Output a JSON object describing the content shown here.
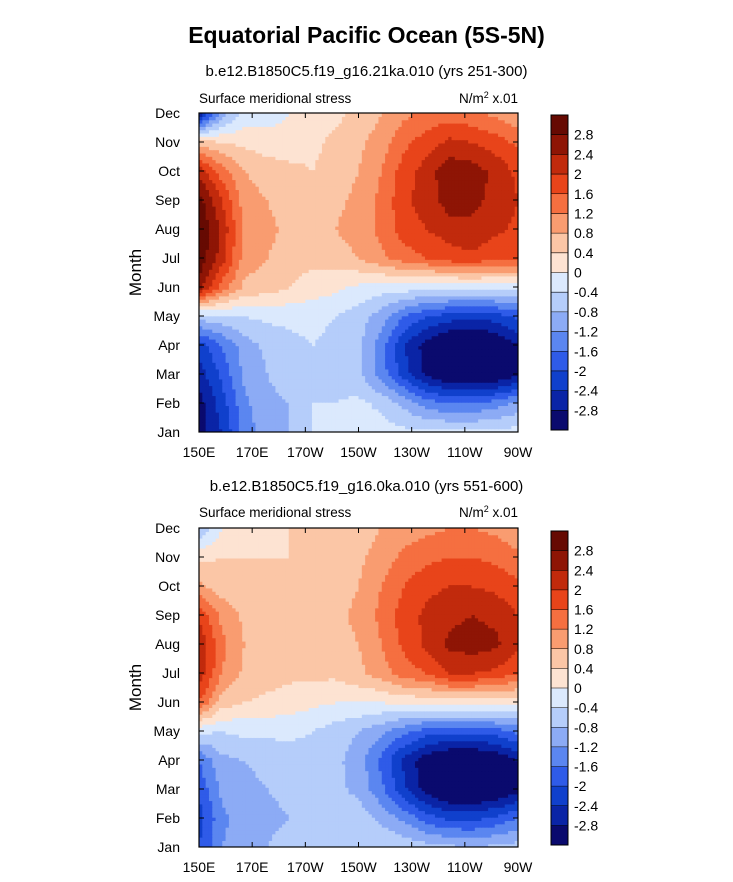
{
  "figure_title": "Equatorial Pacific Ocean (5S-5N)",
  "chart_data": [
    {
      "type": "heatmap",
      "title": "b.e12.B1850C5.f19_g16.21ka.010 (yrs 251-300)",
      "left_label": "Surface meridional stress",
      "right_label": "N/m² x.01",
      "units_base": "N/m",
      "units_sup": "2",
      "units_scale": "x.01",
      "xlabel": "",
      "ylabel": "Month",
      "x_ticks": [
        "150E",
        "170E",
        "170W",
        "150W",
        "130W",
        "110W",
        "90W"
      ],
      "y_ticks": [
        "Jan",
        "Feb",
        "Mar",
        "Apr",
        "May",
        "Jun",
        "Jul",
        "Aug",
        "Sep",
        "Oct",
        "Nov",
        "Dec"
      ],
      "colorbar_labels": [
        "2.8",
        "2.4",
        "2",
        "1.6",
        "1.2",
        "0.8",
        "0.4",
        "0",
        "-0.4",
        "-0.8",
        "-1.2",
        "-1.6",
        "-2",
        "-2.4",
        "-2.8"
      ],
      "rows": [
        [
          -3.0,
          -2.4,
          -1.4,
          -1.0,
          -0.8,
          -0.4,
          -0.3,
          -0.3,
          -0.2,
          -0.3,
          -0.3,
          -0.3,
          -0.3,
          -0.3,
          -0.2
        ],
        [
          -3.0,
          -2.2,
          -1.3,
          -0.9,
          -0.8,
          -0.4,
          -0.4,
          -0.3,
          -0.5,
          -0.9,
          -1.4,
          -1.6,
          -1.6,
          -1.4,
          -1.1
        ],
        [
          -2.6,
          -1.9,
          -1.1,
          -0.8,
          -0.6,
          -0.4,
          -0.5,
          -0.7,
          -1.4,
          -2.2,
          -2.9,
          -3.3,
          -3.4,
          -3.3,
          -2.9
        ],
        [
          -2.2,
          -1.6,
          -1.0,
          -0.7,
          -0.5,
          -0.4,
          -0.5,
          -0.7,
          -1.4,
          -2.4,
          -3.0,
          -3.4,
          -3.5,
          -3.3,
          -2.8
        ],
        [
          -0.6,
          -0.5,
          -0.4,
          -0.3,
          -0.3,
          -0.3,
          -0.4,
          -0.6,
          -1.0,
          -1.6,
          -2.0,
          -2.2,
          -2.3,
          -2.2,
          -1.9
        ],
        [
          2.6,
          1.4,
          0.7,
          0.6,
          0.4,
          0.2,
          0.1,
          -0.1,
          -0.2,
          -0.2,
          -0.3,
          -0.3,
          -0.3,
          -0.3,
          -0.2
        ],
        [
          3.1,
          2.2,
          1.0,
          0.8,
          0.6,
          0.5,
          0.6,
          0.8,
          1.1,
          1.4,
          1.6,
          1.8,
          1.9,
          1.7,
          1.6
        ],
        [
          3.2,
          2.3,
          1.1,
          0.9,
          0.7,
          0.6,
          0.8,
          1.0,
          1.3,
          1.8,
          2.0,
          2.2,
          2.3,
          2.1,
          1.9
        ],
        [
          3.0,
          2.0,
          1.0,
          0.8,
          0.6,
          0.5,
          0.7,
          0.9,
          1.3,
          1.9,
          2.2,
          2.6,
          2.5,
          2.3,
          2.0
        ],
        [
          2.3,
          1.4,
          0.8,
          0.6,
          0.5,
          0.4,
          0.6,
          0.8,
          1.2,
          1.8,
          2.2,
          2.7,
          2.6,
          2.3,
          1.9
        ],
        [
          0.6,
          0.4,
          0.3,
          0.2,
          0.2,
          0.3,
          0.5,
          0.7,
          1.0,
          1.5,
          1.8,
          2.1,
          2.0,
          1.8,
          1.5
        ],
        [
          -2.8,
          -1.0,
          -0.3,
          -0.2,
          0.0,
          0.2,
          0.3,
          0.5,
          0.8,
          1.1,
          1.3,
          1.4,
          1.3,
          1.1,
          0.9
        ]
      ]
    },
    {
      "type": "heatmap",
      "title": "b.e12.B1850C5.f19_g16.0ka.010 (yrs 551-600)",
      "left_label": "Surface meridional stress",
      "right_label": "N/m² x.01",
      "units_base": "N/m",
      "units_sup": "2",
      "units_scale": "x.01",
      "xlabel": "",
      "ylabel": "Month",
      "x_ticks": [
        "150E",
        "170E",
        "170W",
        "150W",
        "130W",
        "110W",
        "90W"
      ],
      "y_ticks": [
        "Jan",
        "Feb",
        "Mar",
        "Apr",
        "May",
        "Jun",
        "Jul",
        "Aug",
        "Sep",
        "Oct",
        "Nov",
        "Dec"
      ],
      "colorbar_labels": [
        "2.8",
        "2.4",
        "2",
        "1.6",
        "1.2",
        "0.8",
        "0.4",
        "0",
        "-0.4",
        "-0.8",
        "-1.2",
        "-1.6",
        "-2",
        "-2.4",
        "-2.8"
      ],
      "rows": [
        [
          -2.0,
          -1.2,
          -0.9,
          -0.8,
          -0.6,
          -0.5,
          -0.5,
          -0.4,
          -0.4,
          -0.5,
          -0.6,
          -0.7,
          -0.8,
          -0.7,
          -0.6
        ],
        [
          -2.2,
          -1.3,
          -1.0,
          -0.9,
          -0.8,
          -0.7,
          -0.6,
          -0.6,
          -0.9,
          -1.3,
          -1.8,
          -2.1,
          -2.1,
          -1.9,
          -1.6
        ],
        [
          -1.9,
          -1.1,
          -0.9,
          -0.8,
          -0.7,
          -0.6,
          -0.7,
          -0.9,
          -1.5,
          -2.3,
          -3.0,
          -3.4,
          -3.5,
          -3.3,
          -3.0
        ],
        [
          -1.6,
          -0.9,
          -0.8,
          -0.7,
          -0.6,
          -0.6,
          -0.7,
          -1.0,
          -1.7,
          -2.5,
          -3.1,
          -3.4,
          -3.4,
          -3.2,
          -2.8
        ],
        [
          -0.3,
          -0.4,
          -0.3,
          -0.3,
          -0.3,
          -0.4,
          -0.6,
          -0.8,
          -1.1,
          -1.5,
          -1.8,
          -1.9,
          -1.9,
          -1.8,
          -1.5
        ],
        [
          1.6,
          0.6,
          0.4,
          0.3,
          0.2,
          0.1,
          0.0,
          0.0,
          0.0,
          0.1,
          0.1,
          0.2,
          0.2,
          0.2,
          0.1
        ],
        [
          2.3,
          1.2,
          0.7,
          0.6,
          0.5,
          0.5,
          0.5,
          0.7,
          1.0,
          1.4,
          1.6,
          2.0,
          2.0,
          1.9,
          1.6
        ],
        [
          2.4,
          1.3,
          0.8,
          0.6,
          0.6,
          0.6,
          0.6,
          0.8,
          1.2,
          1.7,
          2.1,
          2.5,
          2.6,
          2.5,
          2.1
        ],
        [
          1.9,
          1.1,
          0.7,
          0.6,
          0.6,
          0.6,
          0.7,
          0.9,
          1.3,
          1.8,
          2.1,
          2.3,
          2.4,
          2.3,
          2.0
        ],
        [
          0.9,
          0.6,
          0.5,
          0.5,
          0.5,
          0.5,
          0.6,
          0.8,
          1.2,
          1.6,
          1.9,
          2.0,
          2.0,
          1.9,
          1.7
        ],
        [
          0.3,
          0.4,
          0.4,
          0.4,
          0.4,
          0.5,
          0.5,
          0.7,
          1.0,
          1.3,
          1.5,
          1.6,
          1.6,
          1.5,
          1.3
        ],
        [
          -0.8,
          0.0,
          0.2,
          0.3,
          0.4,
          0.4,
          0.5,
          0.6,
          0.8,
          1.0,
          1.1,
          1.2,
          1.2,
          1.1,
          0.9
        ]
      ]
    }
  ],
  "colors": {
    "levels": [
      "#0a0a6e",
      "#0a24a6",
      "#1040cc",
      "#2f5be8",
      "#5b86f0",
      "#8cabf5",
      "#b5cdfa",
      "#dbe9fd",
      "#fde3d2",
      "#fbc6a6",
      "#f99c70",
      "#f56f40",
      "#e8441a",
      "#c12a0c",
      "#8e1505",
      "#660a02"
    ]
  }
}
